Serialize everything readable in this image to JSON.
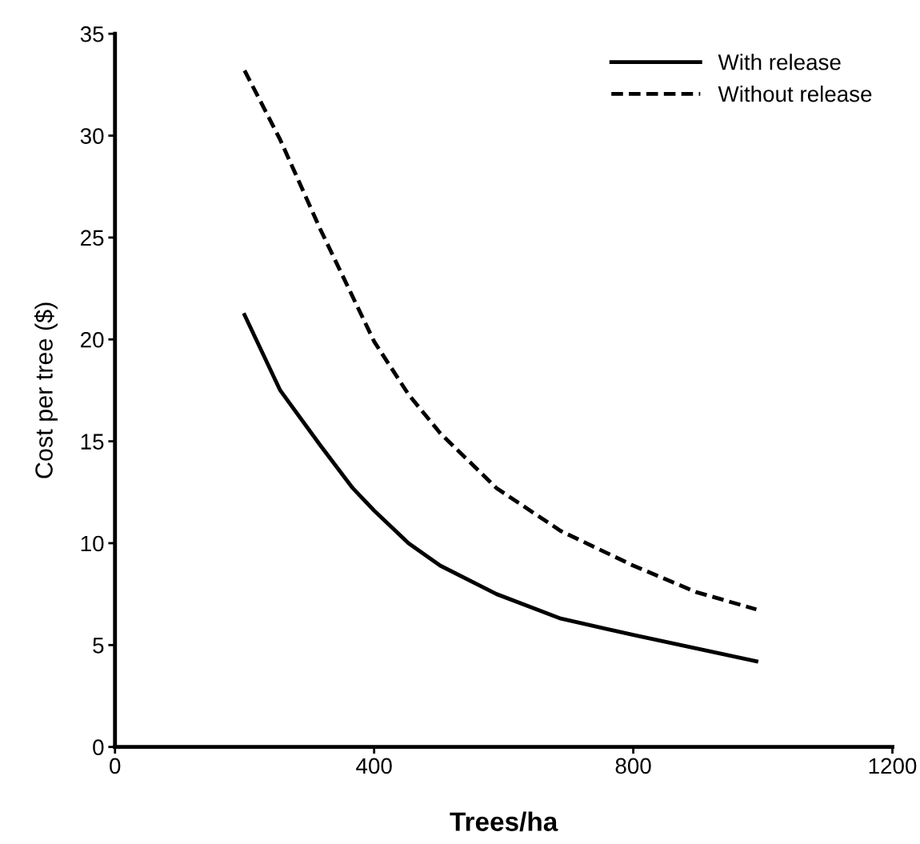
{
  "chart_data": {
    "type": "line",
    "xlabel": "Trees/ha",
    "ylabel": "Cost per tree ($)",
    "xlim": [
      0,
      1200
    ],
    "xticks": [
      0,
      400,
      800,
      1200
    ],
    "ylim": [
      0,
      35
    ],
    "yticks": [
      0,
      5,
      10,
      15,
      20,
      25,
      30,
      35
    ],
    "grid": false,
    "legend": "top right",
    "marker": "none",
    "series": [
      {
        "name": "With release",
        "color": "#000000",
        "line_style": "solid",
        "x": [
          200,
          255,
          317,
          367,
          400,
          453,
          502,
          589,
          688,
          800,
          990
        ],
        "values": [
          21.2,
          17.5,
          14.8,
          12.7,
          11.6,
          10.0,
          8.9,
          7.5,
          6.3,
          5.5,
          4.2
        ]
      },
      {
        "name": "Without release",
        "color": "#000000",
        "line_style": "dashed",
        "x": [
          200,
          255,
          317,
          400,
          453,
          502,
          589,
          688,
          800,
          897,
          990
        ],
        "values": [
          33.2,
          29.8,
          25.4,
          19.9,
          17.3,
          15.4,
          12.7,
          10.6,
          8.9,
          7.6,
          6.75
        ]
      }
    ]
  }
}
